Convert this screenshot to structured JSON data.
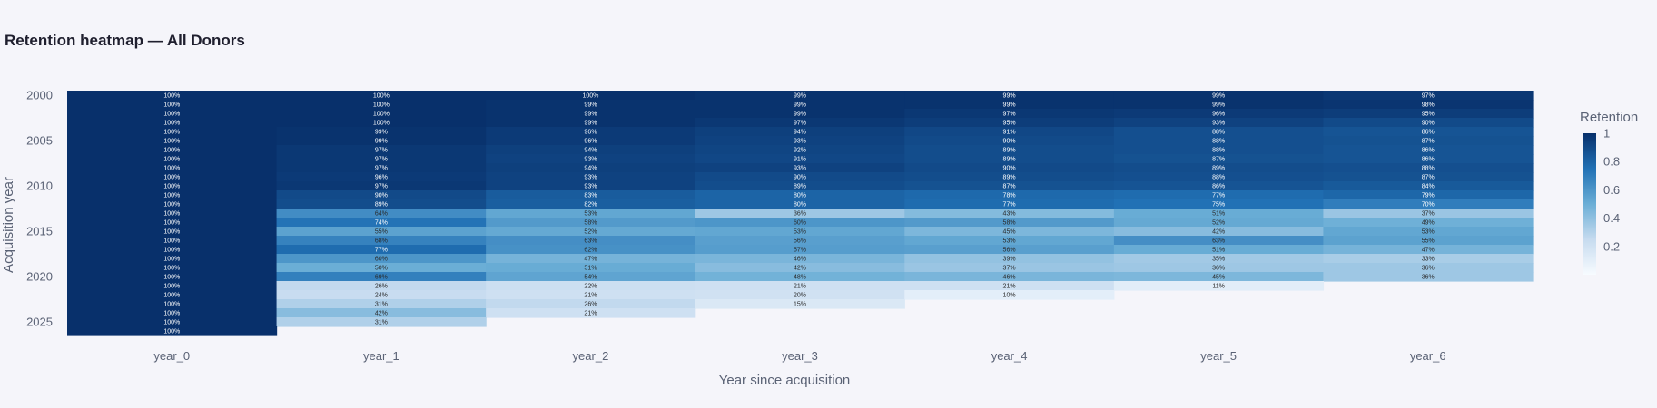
{
  "chart_data": {
    "type": "heatmap",
    "title": "Retention heatmap — All Donors",
    "xlabel": "Year since acquisition",
    "ylabel": "Acquisition year",
    "colorbar_title": "Retention",
    "colorscale": [
      "#f7fbff",
      "#c6dbef",
      "#6baed6",
      "#2171b5",
      "#08306b"
    ],
    "zlim": [
      0,
      1
    ],
    "colorbar_ticks": [
      "1",
      "0.8",
      "0.6",
      "0.4",
      "0.2"
    ],
    "colorbar_tick_values": [
      1,
      0.8,
      0.6,
      0.4,
      0.2
    ],
    "x": [
      "year_0",
      "year_1",
      "year_2",
      "year_3",
      "year_4",
      "year_5",
      "year_6"
    ],
    "y": [
      2000,
      2001,
      2002,
      2003,
      2004,
      2005,
      2006,
      2007,
      2008,
      2009,
      2010,
      2011,
      2012,
      2013,
      2014,
      2015,
      2016,
      2017,
      2018,
      2019,
      2020,
      2021,
      2022,
      2023,
      2024,
      2025,
      2026
    ],
    "y_ticks": [
      "2000",
      "2005",
      "2010",
      "2015",
      "2020",
      "2025"
    ],
    "y_tick_values": [
      2000,
      2005,
      2010,
      2015,
      2020,
      2025
    ],
    "values": [
      [
        100,
        100,
        100,
        99,
        99,
        99,
        97
      ],
      [
        100,
        100,
        99,
        99,
        99,
        99,
        98
      ],
      [
        100,
        100,
        99,
        99,
        97,
        96,
        95
      ],
      [
        100,
        100,
        99,
        97,
        95,
        93,
        90
      ],
      [
        100,
        99,
        96,
        94,
        91,
        88,
        86
      ],
      [
        100,
        99,
        96,
        93,
        90,
        88,
        87
      ],
      [
        100,
        97,
        94,
        92,
        89,
        88,
        86
      ],
      [
        100,
        97,
        93,
        91,
        89,
        87,
        86
      ],
      [
        100,
        97,
        94,
        93,
        90,
        89,
        88
      ],
      [
        100,
        96,
        93,
        90,
        89,
        88,
        87
      ],
      [
        100,
        97,
        93,
        89,
        87,
        86,
        84
      ],
      [
        100,
        90,
        83,
        80,
        78,
        77,
        79
      ],
      [
        100,
        89,
        82,
        80,
        77,
        75,
        70
      ],
      [
        100,
        64,
        53,
        36,
        43,
        51,
        37
      ],
      [
        100,
        74,
        58,
        60,
        58,
        52,
        49
      ],
      [
        100,
        55,
        52,
        53,
        45,
        42,
        53
      ],
      [
        100,
        68,
        63,
        56,
        53,
        63,
        55
      ],
      [
        100,
        77,
        62,
        57,
        56,
        51,
        47
      ],
      [
        100,
        60,
        47,
        46,
        39,
        35,
        33
      ],
      [
        100,
        50,
        51,
        42,
        37,
        36,
        36
      ],
      [
        100,
        69,
        54,
        48,
        46,
        45,
        36
      ],
      [
        100,
        26,
        22,
        21,
        21,
        11,
        null
      ],
      [
        100,
        24,
        21,
        20,
        10,
        null,
        null
      ],
      [
        100,
        31,
        26,
        15,
        null,
        null,
        null
      ],
      [
        100,
        42,
        21,
        null,
        null,
        null,
        null
      ],
      [
        100,
        31,
        null,
        null,
        null,
        null,
        null
      ],
      [
        100,
        null,
        null,
        null,
        null,
        null,
        null
      ]
    ],
    "grid": false,
    "legend": "colorbar right"
  }
}
